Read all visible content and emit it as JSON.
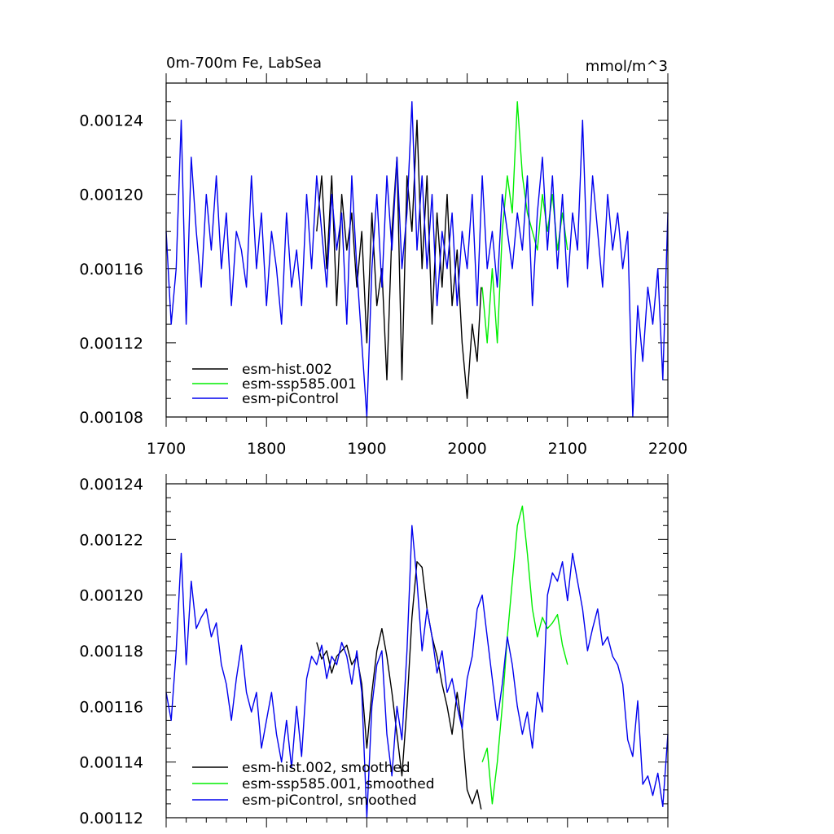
{
  "chart_data": [
    {
      "type": "line",
      "title_left": "0m-700m Fe, LabSea",
      "title_right": "mmol/m^3",
      "xlim": [
        1700,
        2200
      ],
      "ylim": [
        0.00108,
        0.00126
      ],
      "x_ticks": [
        1700,
        1800,
        1900,
        2000,
        2100,
        2200
      ],
      "x_tick_labels": [
        "1700",
        "1800",
        "1900",
        "2000",
        "2100",
        "2200"
      ],
      "y_ticks": [
        0.00108,
        0.00112,
        0.00116,
        0.0012,
        0.00124
      ],
      "y_tick_labels": [
        "0.00108",
        "0.00112",
        "0.00116",
        "0.00120",
        "0.00124"
      ],
      "series": [
        {
          "name": "esm-hist.002",
          "color": "#000000",
          "x": [
            1850,
            1855,
            1860,
            1865,
            1870,
            1875,
            1880,
            1885,
            1890,
            1895,
            1900,
            1905,
            1910,
            1915,
            1920,
            1925,
            1930,
            1935,
            1940,
            1945,
            1950,
            1955,
            1960,
            1965,
            1970,
            1975,
            1980,
            1985,
            1990,
            1995,
            2000,
            2005,
            2010,
            2014
          ],
          "y": [
            0.00118,
            0.00121,
            0.00116,
            0.00121,
            0.00114,
            0.0012,
            0.00117,
            0.00119,
            0.00115,
            0.00118,
            0.00112,
            0.00119,
            0.00114,
            0.00116,
            0.0011,
            0.00118,
            0.00122,
            0.0011,
            0.00121,
            0.00118,
            0.00124,
            0.00116,
            0.00121,
            0.00113,
            0.00119,
            0.00115,
            0.0012,
            0.00114,
            0.00117,
            0.00112,
            0.00109,
            0.00113,
            0.00111,
            0.00115
          ]
        },
        {
          "name": "esm-ssp585.001",
          "color": "#00ee00",
          "x": [
            2015,
            2020,
            2025,
            2030,
            2035,
            2040,
            2045,
            2050,
            2055,
            2060,
            2065,
            2070,
            2075,
            2080,
            2085,
            2090,
            2095,
            2100
          ],
          "y": [
            0.00115,
            0.00112,
            0.00116,
            0.00112,
            0.00118,
            0.00121,
            0.00119,
            0.00125,
            0.00121,
            0.00119,
            0.00118,
            0.00117,
            0.0012,
            0.00118,
            0.0012,
            0.00117,
            0.00119,
            0.00117
          ]
        },
        {
          "name": "esm-piControl",
          "color": "#0000ee",
          "x": [
            1700,
            1705,
            1710,
            1715,
            1720,
            1725,
            1730,
            1735,
            1740,
            1745,
            1750,
            1755,
            1760,
            1765,
            1770,
            1775,
            1780,
            1785,
            1790,
            1795,
            1800,
            1805,
            1810,
            1815,
            1820,
            1825,
            1830,
            1835,
            1840,
            1845,
            1850,
            1855,
            1860,
            1865,
            1870,
            1875,
            1880,
            1885,
            1890,
            1895,
            1900,
            1905,
            1910,
            1915,
            1920,
            1925,
            1930,
            1935,
            1940,
            1945,
            1950,
            1955,
            1960,
            1965,
            1970,
            1975,
            1980,
            1985,
            1990,
            1995,
            2000,
            2005,
            2010,
            2015,
            2020,
            2025,
            2030,
            2035,
            2040,
            2045,
            2050,
            2055,
            2060,
            2065,
            2070,
            2075,
            2080,
            2085,
            2090,
            2095,
            2100,
            2105,
            2110,
            2115,
            2120,
            2125,
            2130,
            2135,
            2140,
            2145,
            2150,
            2155,
            2160,
            2165,
            2170,
            2175,
            2180,
            2185,
            2190,
            2195,
            2200
          ],
          "y": [
            0.00118,
            0.00113,
            0.00116,
            0.00124,
            0.00113,
            0.00122,
            0.00118,
            0.00115,
            0.0012,
            0.00117,
            0.00121,
            0.00116,
            0.00119,
            0.00114,
            0.00118,
            0.00117,
            0.00115,
            0.00121,
            0.00116,
            0.00119,
            0.00114,
            0.00118,
            0.00116,
            0.00113,
            0.00119,
            0.00115,
            0.00117,
            0.00114,
            0.0012,
            0.00116,
            0.00121,
            0.00118,
            0.00115,
            0.0012,
            0.00117,
            0.00119,
            0.00113,
            0.00121,
            0.00116,
            0.00112,
            0.00108,
            0.00116,
            0.0012,
            0.00115,
            0.00121,
            0.00117,
            0.00122,
            0.00116,
            0.00119,
            0.00125,
            0.00117,
            0.00121,
            0.00116,
            0.0012,
            0.00114,
            0.00118,
            0.00116,
            0.00119,
            0.00114,
            0.00118,
            0.00116,
            0.0012,
            0.00114,
            0.00121,
            0.00116,
            0.00118,
            0.00115,
            0.0012,
            0.00118,
            0.00116,
            0.00119,
            0.00117,
            0.00121,
            0.00114,
            0.00119,
            0.00122,
            0.00117,
            0.00121,
            0.00116,
            0.0012,
            0.00115,
            0.00119,
            0.00117,
            0.00124,
            0.00116,
            0.00121,
            0.00118,
            0.00115,
            0.0012,
            0.00117,
            0.00119,
            0.00116,
            0.00118,
            0.00108,
            0.00114,
            0.00111,
            0.00115,
            0.00113,
            0.00116,
            0.0011,
            0.00119
          ]
        }
      ]
    },
    {
      "type": "line",
      "xlim": [
        1700,
        2200
      ],
      "ylim": [
        0.00112,
        0.00124
      ],
      "x_ticks": [
        1700,
        1800,
        1900,
        2000,
        2100,
        2200
      ],
      "y_ticks": [
        0.00112,
        0.00114,
        0.00116,
        0.00118,
        0.0012,
        0.00122,
        0.00124
      ],
      "y_tick_labels": [
        "0.00112",
        "0.00114",
        "0.00116",
        "0.00118",
        "0.00120",
        "0.00122",
        "0.00124"
      ],
      "series": [
        {
          "name": "esm-hist.002, smoothed",
          "color": "#000000",
          "x": [
            1850,
            1855,
            1860,
            1865,
            1870,
            1875,
            1880,
            1885,
            1890,
            1895,
            1900,
            1905,
            1910,
            1915,
            1920,
            1925,
            1930,
            1935,
            1940,
            1945,
            1950,
            1955,
            1960,
            1965,
            1970,
            1975,
            1980,
            1985,
            1990,
            1995,
            2000,
            2005,
            2010,
            2014
          ],
          "y": [
            0.001183,
            0.001177,
            0.00118,
            0.001172,
            0.001178,
            0.00118,
            0.001182,
            0.001175,
            0.001178,
            0.001168,
            0.001145,
            0.001165,
            0.00118,
            0.001188,
            0.001178,
            0.001165,
            0.00115,
            0.001135,
            0.00116,
            0.001192,
            0.001212,
            0.00121,
            0.001195,
            0.001185,
            0.001178,
            0.001168,
            0.00116,
            0.00115,
            0.001165,
            0.001152,
            0.00113,
            0.001125,
            0.00113,
            0.001123
          ]
        },
        {
          "name": "esm-ssp585.001, smoothed",
          "color": "#00ee00",
          "x": [
            2015,
            2020,
            2025,
            2030,
            2035,
            2040,
            2045,
            2050,
            2055,
            2060,
            2065,
            2070,
            2075,
            2080,
            2085,
            2090,
            2095,
            2100
          ],
          "y": [
            0.00114,
            0.001145,
            0.001125,
            0.00114,
            0.00116,
            0.001185,
            0.001205,
            0.001225,
            0.001232,
            0.001215,
            0.001195,
            0.001185,
            0.001192,
            0.001188,
            0.00119,
            0.001193,
            0.001182,
            0.001175
          ]
        },
        {
          "name": "esm-piControl, smoothed",
          "color": "#0000ee",
          "x": [
            1700,
            1705,
            1710,
            1715,
            1720,
            1725,
            1730,
            1735,
            1740,
            1745,
            1750,
            1755,
            1760,
            1765,
            1770,
            1775,
            1780,
            1785,
            1790,
            1795,
            1800,
            1805,
            1810,
            1815,
            1820,
            1825,
            1830,
            1835,
            1840,
            1845,
            1850,
            1855,
            1860,
            1865,
            1870,
            1875,
            1880,
            1885,
            1890,
            1895,
            1900,
            1905,
            1910,
            1915,
            1920,
            1925,
            1930,
            1935,
            1940,
            1945,
            1950,
            1955,
            1960,
            1965,
            1970,
            1975,
            1980,
            1985,
            1990,
            1995,
            2000,
            2005,
            2010,
            2015,
            2020,
            2025,
            2030,
            2035,
            2040,
            2045,
            2050,
            2055,
            2060,
            2065,
            2070,
            2075,
            2080,
            2085,
            2090,
            2095,
            2100,
            2105,
            2110,
            2115,
            2120,
            2125,
            2130,
            2135,
            2140,
            2145,
            2150,
            2155,
            2160,
            2165,
            2170,
            2175,
            2180,
            2185,
            2190,
            2195,
            2200
          ],
          "y": [
            0.001165,
            0.001155,
            0.00118,
            0.001215,
            0.001175,
            0.001205,
            0.001188,
            0.001192,
            0.001195,
            0.001185,
            0.00119,
            0.001175,
            0.001168,
            0.001155,
            0.00117,
            0.001182,
            0.001165,
            0.001158,
            0.001165,
            0.001145,
            0.001155,
            0.001165,
            0.00115,
            0.00114,
            0.001155,
            0.001138,
            0.00116,
            0.001142,
            0.00117,
            0.001178,
            0.001175,
            0.001182,
            0.00117,
            0.001178,
            0.001175,
            0.001183,
            0.001178,
            0.001168,
            0.00118,
            0.001165,
            0.00112,
            0.00116,
            0.001175,
            0.00118,
            0.00115,
            0.001135,
            0.00116,
            0.001148,
            0.00118,
            0.001225,
            0.001205,
            0.00118,
            0.001195,
            0.001185,
            0.001172,
            0.00118,
            0.001165,
            0.00117,
            0.00116,
            0.001152,
            0.00117,
            0.001178,
            0.001195,
            0.0012,
            0.001185,
            0.00117,
            0.001155,
            0.001168,
            0.001185,
            0.001175,
            0.00116,
            0.00115,
            0.001158,
            0.001145,
            0.001165,
            0.001158,
            0.0012,
            0.001208,
            0.001205,
            0.001212,
            0.001198,
            0.001215,
            0.001205,
            0.001195,
            0.00118,
            0.001188,
            0.001195,
            0.001182,
            0.001185,
            0.001178,
            0.001175,
            0.001168,
            0.001148,
            0.001142,
            0.001162,
            0.001132,
            0.001135,
            0.001128,
            0.001136,
            0.001124,
            0.00115
          ]
        }
      ]
    }
  ]
}
